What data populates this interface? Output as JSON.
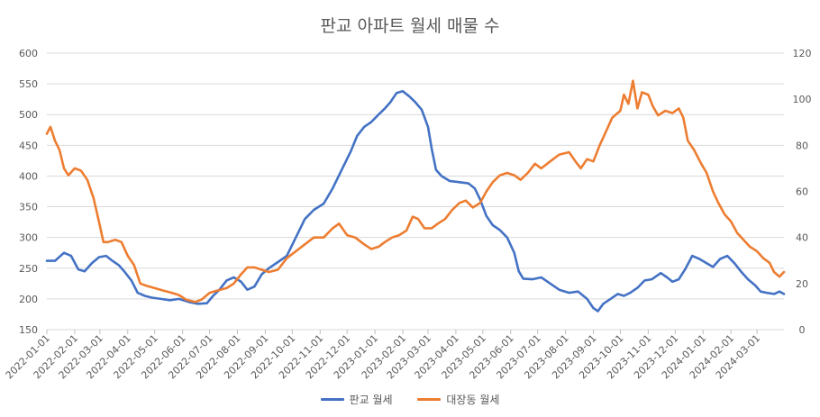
{
  "chart_data": {
    "type": "line",
    "title": "판교 아파트 월세 매물 수",
    "xlabel": "",
    "ylabel": "",
    "y_left_ticks": [
      "600",
      "550",
      "500",
      "450",
      "400",
      "350",
      "300",
      "250",
      "200",
      "150"
    ],
    "y_right_ticks": [
      "120",
      "100",
      "80",
      "60",
      "40",
      "20",
      "0"
    ],
    "ylim_left": [
      150,
      600
    ],
    "ylim_right": [
      0,
      120
    ],
    "x_start": "2022-01-01",
    "x_end": "2024-03-31",
    "x_ticks": [
      "2022-01-01",
      "2022-02-01",
      "2022-03-01",
      "2022-04-01",
      "2022-05-01",
      "2022-06-01",
      "2022-07-01",
      "2022-08-01",
      "2022-09-01",
      "2022-10-01",
      "2022-11-01",
      "2022-12-01",
      "2023-01-01",
      "2023-02-01",
      "2023-03-01",
      "2023-04-01",
      "2023-05-01",
      "2023-06-01",
      "2023-07-01",
      "2023-08-01",
      "2023-09-01",
      "2023-10-01",
      "2023-11-01",
      "2023-12-01",
      "2024-01-01",
      "2024-02-01",
      "2024-03-01"
    ],
    "grid": true,
    "legend_position": "bottom",
    "series": [
      {
        "name": "판교 월세",
        "axis": "left",
        "color": "#4472C4",
        "points": [
          [
            "2022-01-01",
            262
          ],
          [
            "2022-01-10",
            262
          ],
          [
            "2022-01-20",
            275
          ],
          [
            "2022-01-28",
            270
          ],
          [
            "2022-02-05",
            248
          ],
          [
            "2022-02-12",
            245
          ],
          [
            "2022-02-20",
            258
          ],
          [
            "2022-02-28",
            268
          ],
          [
            "2022-03-08",
            270
          ],
          [
            "2022-03-15",
            262
          ],
          [
            "2022-03-22",
            255
          ],
          [
            "2022-03-28",
            245
          ],
          [
            "2022-04-05",
            230
          ],
          [
            "2022-04-12",
            210
          ],
          [
            "2022-04-20",
            205
          ],
          [
            "2022-04-28",
            202
          ],
          [
            "2022-05-08",
            200
          ],
          [
            "2022-05-18",
            198
          ],
          [
            "2022-05-28",
            200
          ],
          [
            "2022-06-08",
            195
          ],
          [
            "2022-06-18",
            192
          ],
          [
            "2022-06-28",
            193
          ],
          [
            "2022-07-05",
            205
          ],
          [
            "2022-07-12",
            215
          ],
          [
            "2022-07-20",
            230
          ],
          [
            "2022-07-28",
            235
          ],
          [
            "2022-08-05",
            228
          ],
          [
            "2022-08-12",
            215
          ],
          [
            "2022-08-20",
            220
          ],
          [
            "2022-08-28",
            240
          ],
          [
            "2022-09-05",
            250
          ],
          [
            "2022-09-15",
            260
          ],
          [
            "2022-09-25",
            270
          ],
          [
            "2022-10-05",
            300
          ],
          [
            "2022-10-15",
            330
          ],
          [
            "2022-10-25",
            345
          ],
          [
            "2022-11-05",
            355
          ],
          [
            "2022-11-15",
            380
          ],
          [
            "2022-11-25",
            410
          ],
          [
            "2022-12-05",
            440
          ],
          [
            "2022-12-12",
            465
          ],
          [
            "2022-12-20",
            480
          ],
          [
            "2022-12-28",
            488
          ],
          [
            "2023-01-05",
            500
          ],
          [
            "2023-01-12",
            510
          ],
          [
            "2023-01-18",
            520
          ],
          [
            "2023-01-25",
            535
          ],
          [
            "2023-02-01",
            538
          ],
          [
            "2023-02-08",
            530
          ],
          [
            "2023-02-15",
            520
          ],
          [
            "2023-02-22",
            508
          ],
          [
            "2023-03-01",
            480
          ],
          [
            "2023-03-05",
            445
          ],
          [
            "2023-03-10",
            410
          ],
          [
            "2023-03-16",
            400
          ],
          [
            "2023-03-25",
            392
          ],
          [
            "2023-04-05",
            390
          ],
          [
            "2023-04-15",
            388
          ],
          [
            "2023-04-22",
            380
          ],
          [
            "2023-04-28",
            362
          ],
          [
            "2023-05-05",
            335
          ],
          [
            "2023-05-12",
            320
          ],
          [
            "2023-05-20",
            312
          ],
          [
            "2023-05-28",
            300
          ],
          [
            "2023-06-05",
            275
          ],
          [
            "2023-06-10",
            245
          ],
          [
            "2023-06-15",
            233
          ],
          [
            "2023-06-25",
            232
          ],
          [
            "2023-07-05",
            235
          ],
          [
            "2023-07-15",
            225
          ],
          [
            "2023-07-25",
            215
          ],
          [
            "2023-08-05",
            210
          ],
          [
            "2023-08-15",
            212
          ],
          [
            "2023-08-25",
            200
          ],
          [
            "2023-09-01",
            185
          ],
          [
            "2023-09-06",
            180
          ],
          [
            "2023-09-12",
            192
          ],
          [
            "2023-09-20",
            200
          ],
          [
            "2023-09-28",
            208
          ],
          [
            "2023-10-05",
            205
          ],
          [
            "2023-10-12",
            210
          ],
          [
            "2023-10-20",
            218
          ],
          [
            "2023-10-28",
            230
          ],
          [
            "2023-11-05",
            232
          ],
          [
            "2023-11-15",
            242
          ],
          [
            "2023-11-22",
            235
          ],
          [
            "2023-11-28",
            228
          ],
          [
            "2023-12-05",
            232
          ],
          [
            "2023-12-12",
            248
          ],
          [
            "2023-12-20",
            270
          ],
          [
            "2023-12-28",
            265
          ],
          [
            "2024-01-05",
            258
          ],
          [
            "2024-01-12",
            252
          ],
          [
            "2024-01-20",
            265
          ],
          [
            "2024-01-28",
            270
          ],
          [
            "2024-02-05",
            258
          ],
          [
            "2024-02-12",
            245
          ],
          [
            "2024-02-20",
            232
          ],
          [
            "2024-02-28",
            222
          ],
          [
            "2024-03-05",
            212
          ],
          [
            "2024-03-12",
            210
          ],
          [
            "2024-03-20",
            208
          ],
          [
            "2024-03-26",
            212
          ],
          [
            "2024-03-31",
            208
          ]
        ]
      },
      {
        "name": "대장동 월세",
        "axis": "right",
        "color": "#ED7D31",
        "points": [
          [
            "2022-01-01",
            85
          ],
          [
            "2022-01-05",
            88
          ],
          [
            "2022-01-10",
            82
          ],
          [
            "2022-01-15",
            78
          ],
          [
            "2022-01-20",
            70
          ],
          [
            "2022-01-25",
            67
          ],
          [
            "2022-02-01",
            70
          ],
          [
            "2022-02-08",
            69
          ],
          [
            "2022-02-15",
            65
          ],
          [
            "2022-02-22",
            57
          ],
          [
            "2022-03-01",
            45
          ],
          [
            "2022-03-05",
            38
          ],
          [
            "2022-03-10",
            38
          ],
          [
            "2022-03-18",
            39
          ],
          [
            "2022-03-25",
            38
          ],
          [
            "2022-04-01",
            32
          ],
          [
            "2022-04-08",
            28
          ],
          [
            "2022-04-15",
            20
          ],
          [
            "2022-04-22",
            19
          ],
          [
            "2022-05-01",
            18
          ],
          [
            "2022-05-10",
            17
          ],
          [
            "2022-05-20",
            16
          ],
          [
            "2022-05-28",
            15
          ],
          [
            "2022-06-05",
            13
          ],
          [
            "2022-06-15",
            12
          ],
          [
            "2022-06-22",
            13
          ],
          [
            "2022-07-01",
            16
          ],
          [
            "2022-07-10",
            17
          ],
          [
            "2022-07-20",
            18
          ],
          [
            "2022-07-28",
            20
          ],
          [
            "2022-08-05",
            24
          ],
          [
            "2022-08-12",
            27
          ],
          [
            "2022-08-20",
            27
          ],
          [
            "2022-08-28",
            26
          ],
          [
            "2022-09-05",
            25
          ],
          [
            "2022-09-15",
            26
          ],
          [
            "2022-09-25",
            31
          ],
          [
            "2022-10-05",
            34
          ],
          [
            "2022-10-15",
            37
          ],
          [
            "2022-10-25",
            40
          ],
          [
            "2022-11-05",
            40
          ],
          [
            "2022-11-15",
            44
          ],
          [
            "2022-11-22",
            46
          ],
          [
            "2022-12-01",
            41
          ],
          [
            "2022-12-10",
            40
          ],
          [
            "2022-12-20",
            37
          ],
          [
            "2022-12-28",
            35
          ],
          [
            "2023-01-05",
            36
          ],
          [
            "2023-01-12",
            38
          ],
          [
            "2023-01-20",
            40
          ],
          [
            "2023-01-28",
            41
          ],
          [
            "2023-02-05",
            43
          ],
          [
            "2023-02-12",
            49
          ],
          [
            "2023-02-18",
            48
          ],
          [
            "2023-02-25",
            44
          ],
          [
            "2023-03-05",
            44
          ],
          [
            "2023-03-12",
            46
          ],
          [
            "2023-03-20",
            48
          ],
          [
            "2023-03-28",
            52
          ],
          [
            "2023-04-05",
            55
          ],
          [
            "2023-04-12",
            56
          ],
          [
            "2023-04-20",
            53
          ],
          [
            "2023-04-28",
            55
          ],
          [
            "2023-05-05",
            60
          ],
          [
            "2023-05-12",
            64
          ],
          [
            "2023-05-20",
            67
          ],
          [
            "2023-05-28",
            68
          ],
          [
            "2023-06-05",
            67
          ],
          [
            "2023-06-12",
            65
          ],
          [
            "2023-06-20",
            68
          ],
          [
            "2023-06-28",
            72
          ],
          [
            "2023-07-05",
            70
          ],
          [
            "2023-07-15",
            73
          ],
          [
            "2023-07-25",
            76
          ],
          [
            "2023-08-05",
            77
          ],
          [
            "2023-08-12",
            73
          ],
          [
            "2023-08-18",
            70
          ],
          [
            "2023-08-25",
            74
          ],
          [
            "2023-09-01",
            73
          ],
          [
            "2023-09-08",
            80
          ],
          [
            "2023-09-15",
            86
          ],
          [
            "2023-09-22",
            92
          ],
          [
            "2023-10-01",
            95
          ],
          [
            "2023-10-05",
            102
          ],
          [
            "2023-10-10",
            98
          ],
          [
            "2023-10-15",
            108
          ],
          [
            "2023-10-20",
            96
          ],
          [
            "2023-10-25",
            103
          ],
          [
            "2023-11-01",
            102
          ],
          [
            "2023-11-06",
            97
          ],
          [
            "2023-11-12",
            93
          ],
          [
            "2023-11-20",
            95
          ],
          [
            "2023-11-28",
            94
          ],
          [
            "2023-12-05",
            96
          ],
          [
            "2023-12-10",
            92
          ],
          [
            "2023-12-15",
            82
          ],
          [
            "2023-12-22",
            78
          ],
          [
            "2023-12-30",
            72
          ],
          [
            "2024-01-05",
            68
          ],
          [
            "2024-01-12",
            60
          ],
          [
            "2024-01-18",
            55
          ],
          [
            "2024-01-25",
            50
          ],
          [
            "2024-02-01",
            47
          ],
          [
            "2024-02-08",
            42
          ],
          [
            "2024-02-15",
            39
          ],
          [
            "2024-02-22",
            36
          ],
          [
            "2024-03-01",
            34
          ],
          [
            "2024-03-08",
            31
          ],
          [
            "2024-03-15",
            29
          ],
          [
            "2024-03-20",
            25
          ],
          [
            "2024-03-26",
            23
          ],
          [
            "2024-03-31",
            25
          ]
        ]
      }
    ]
  }
}
